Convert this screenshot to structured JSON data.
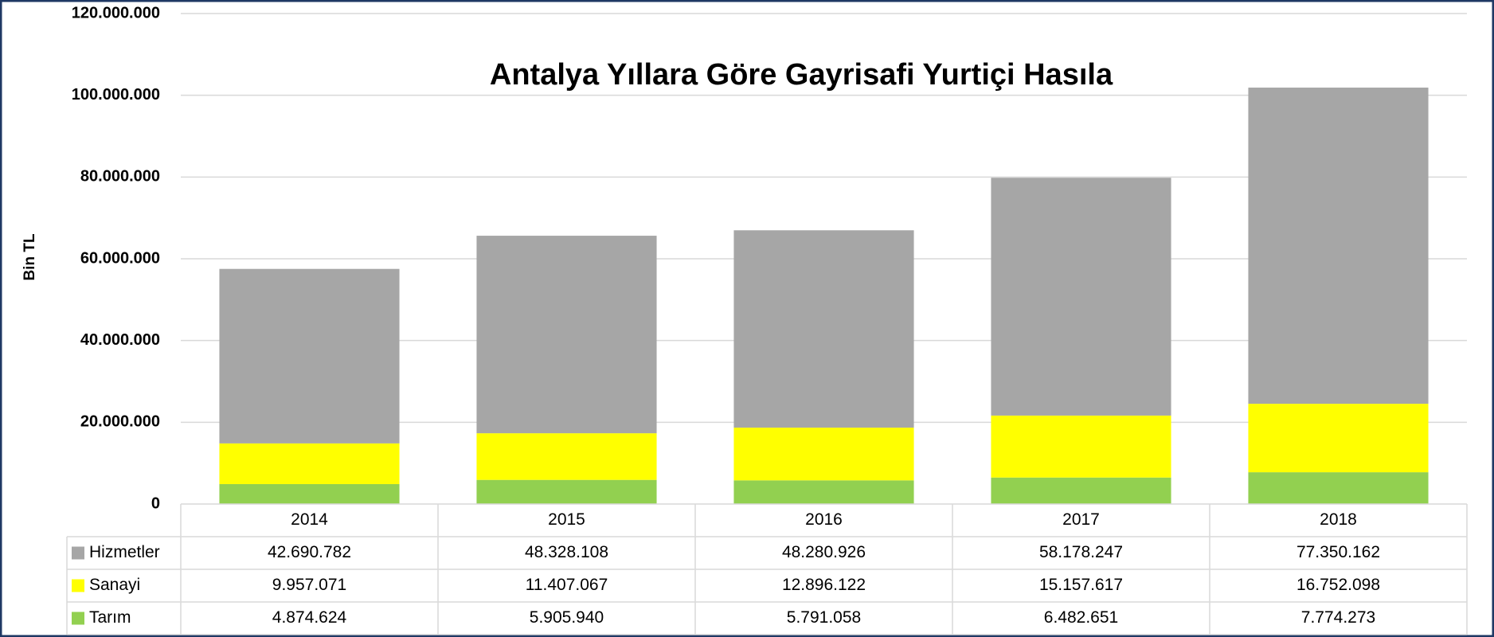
{
  "chart_data": {
    "type": "stacked_bar",
    "title": "Antalya Yıllara Göre Gayrisafi Yurtiçi Hasıla",
    "y_label": "Bin TL",
    "categories": [
      "2014",
      "2015",
      "2016",
      "2017",
      "2018"
    ],
    "series": [
      {
        "name": "Tarım",
        "color": "#92d050",
        "values": [
          4874624,
          5905940,
          5791058,
          6482651,
          7774273
        ],
        "value_labels": [
          "4.874.624",
          "5.905.940",
          "5.791.058",
          "6.482.651",
          "7.774.273"
        ]
      },
      {
        "name": "Sanayi",
        "color": "#ffff00",
        "values": [
          9957071,
          11407067,
          12896122,
          15157617,
          16752098
        ],
        "value_labels": [
          "9.957.071",
          "11.407.067",
          "12.896.122",
          "15.157.617",
          "16.752.098"
        ]
      },
      {
        "name": "Hizmetler",
        "color": "#a6a6a6",
        "values": [
          42690782,
          48328108,
          48280926,
          58178247,
          77350162
        ],
        "value_labels": [
          "42.690.782",
          "48.328.108",
          "48.280.926",
          "58.178.247",
          "77.350.162"
        ]
      }
    ],
    "ylim": [
      0,
      120000000
    ],
    "yticks": [
      0,
      {
        "value": 20000000,
        "label": "20.000.000"
      },
      {
        "value": 40000000,
        "label": "40.000.000"
      },
      {
        "value": 60000000,
        "label": "60.000.000"
      },
      {
        "value": 80000000,
        "label": "80.000.000"
      },
      {
        "value": 100000000,
        "label": "100.000.000"
      },
      {
        "value": 120000000,
        "label": "120.000.000"
      }
    ],
    "grid": true,
    "data_table": true
  }
}
